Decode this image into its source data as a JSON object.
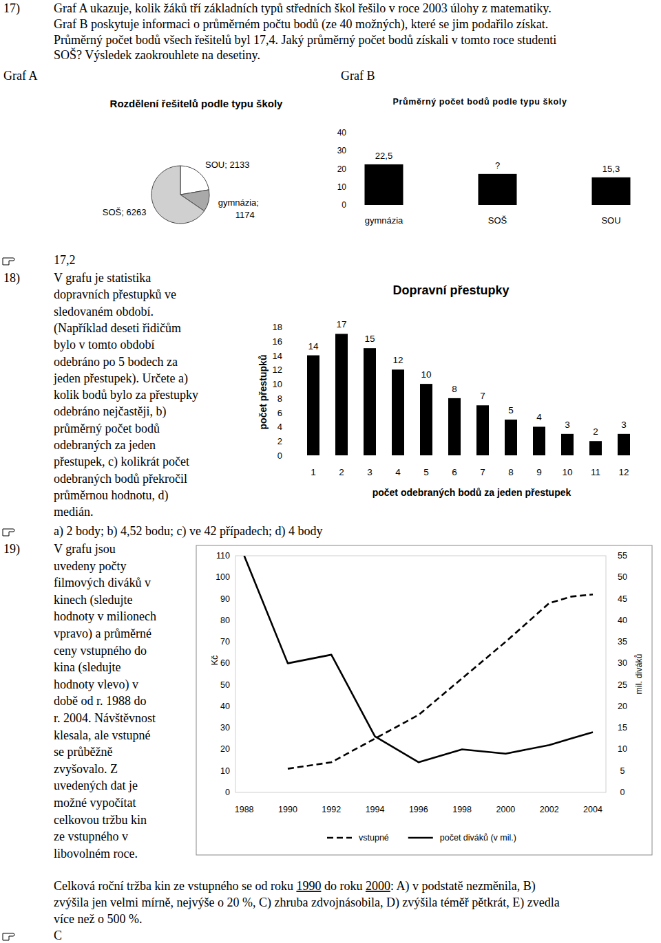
{
  "problems": [
    {
      "number": "17)",
      "text": [
        "Graf A ukazuje, kolik žáků tří základních typů středních škol řešilo v roce 2003 úlohy z matematiky.",
        "Graf B poskytuje informaci o průměrném počtu bodů (ze 40 možných), které se jim podařilo získat.",
        "Průměrný počet bodů všech řešitelů byl 17,4. Jaký průměrný počet bodů získali v tomto roce studenti",
        "SOŠ? Výsledek zaokrouhlete na desetiny."
      ],
      "answer": "17,2"
    },
    {
      "number": "18)",
      "text": [
        "V grafu je statistika",
        "dopravních přestupků ve",
        "sledovaném období.",
        "(Například deseti řidičům",
        "bylo v tomto období",
        "odebráno po 5 bodech za",
        "jeden přestupek). Určete a)",
        "kolik bodů bylo za přestupky",
        "odebráno nejčastěji, b)",
        "průměrný počet bodů",
        "odebraných za jeden",
        "přestupek, c) kolikrát počet",
        "odebraných bodů překročil",
        "průměrnou hodnotu, d)",
        "medián."
      ],
      "answer": "a) 2 body; b) 4,52 bodu; c) ve 42 případech; d) 4 body"
    },
    {
      "number": "19)",
      "text": [
        "V grafu jsou",
        "uvedeny počty",
        "filmových diváků v",
        "kinech (sledujte",
        "hodnoty v milionech",
        "vpravo) a průměrné",
        "ceny vstupného do",
        "kina (sledujte",
        "hodnoty vlevo) v",
        "době od r. 1988 do",
        "r. 2004. Návštěvnost",
        "klesala, ale vstupné",
        "se průběžně",
        "zvyšovalo. Z",
        "uvedených dat je",
        "možné vypočítat",
        "celkovou tržbu kin",
        "ze vstupného v",
        "libovolném roce."
      ],
      "question": [
        [
          "Celková roční tržba kin ze vstupného se od roku ",
          "1990",
          " do roku ",
          "2000",
          ": A) v podstatě nezměnila, B)"
        ],
        [
          "zvýšila jen velmi mírně, nejvýše o 20 %, C) zhruba zdvojnásobila, D) zvýšila téměř pětkrát, E) zvedla"
        ],
        [
          "více než o 500 %."
        ]
      ],
      "answer": "C"
    }
  ],
  "graph_labels": [
    "Graf A",
    "Graf B"
  ],
  "chart_data": [
    {
      "type": "pie",
      "title": "Rozdělení řešitelů podle typu školy",
      "categories": [
        "SOU",
        "gymnázia",
        "SOŠ"
      ],
      "values": [
        2133,
        1174,
        6263
      ],
      "colors": [
        "#ffffff",
        "#a9a9a9",
        "#d0d0d0"
      ],
      "data_labels": true
    },
    {
      "type": "bar",
      "title": "Průměrný počet bodů podle typu školy",
      "categories": [
        "gymnázia",
        "SOŠ",
        "SOU"
      ],
      "values": [
        22.5,
        17.2,
        15.3
      ],
      "value_labels": [
        "22,5",
        "?",
        "15,3"
      ],
      "color": "#000000",
      "ylim": [
        0,
        40
      ],
      "yticks": [
        0,
        10,
        20,
        30,
        40
      ],
      "grid": false,
      "data_labels": true
    },
    {
      "type": "bar",
      "title": "Dopravní přestupky",
      "x_label": "počet odebraných bodů za jeden přestupek",
      "y_label": "počet přestupků",
      "categories": [
        1,
        2,
        3,
        4,
        5,
        6,
        7,
        8,
        9,
        10,
        11,
        12
      ],
      "values": [
        14,
        17,
        15,
        12,
        10,
        8,
        7,
        5,
        4,
        3,
        2,
        3
      ],
      "color": "#000000",
      "ylim": [
        0,
        18
      ],
      "yticks": [
        0,
        2,
        4,
        6,
        8,
        10,
        12,
        14,
        16,
        18
      ],
      "grid": false,
      "data_labels": true
    },
    {
      "type": "line",
      "y_label": "Kč",
      "y2_label": "mil. diváků",
      "x": [
        1988,
        1990,
        1992,
        1994,
        1996,
        1998,
        2000,
        2002,
        2003,
        2004
      ],
      "series": [
        {
          "name": "vstupné",
          "color": "#000000",
          "line_style": "dashed",
          "values": [
            null,
            11,
            14,
            25,
            36,
            53,
            70,
            88,
            91,
            92
          ]
        },
        {
          "name": "počet diváků (v mil.)",
          "color": "#000000",
          "line_style": "solid",
          "axis": "y2",
          "values": [
            55,
            30,
            32,
            13,
            7,
            10,
            9,
            11,
            12.5,
            14
          ]
        }
      ],
      "xlim": [
        1987.6,
        2004.6
      ],
      "xticks": [
        1988,
        1990,
        1992,
        1994,
        1996,
        1998,
        2000,
        2002,
        2004
      ],
      "ylim": [
        0,
        110
      ],
      "yticks": [
        0,
        10,
        20,
        30,
        40,
        50,
        60,
        70,
        80,
        90,
        100,
        110
      ],
      "y2lim": [
        0,
        55
      ],
      "y2ticks": [
        0,
        5,
        10,
        15,
        20,
        25,
        30,
        35,
        40,
        45,
        50,
        55
      ],
      "grid": false,
      "legend": "bottom"
    }
  ]
}
